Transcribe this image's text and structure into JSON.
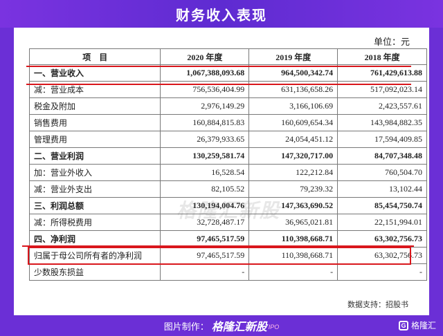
{
  "title": "财务收入表现",
  "unit_label": "单位：元",
  "table": {
    "headers": [
      "项　目",
      "2020 年度",
      "2019 年度",
      "2018 年度"
    ],
    "rows": [
      {
        "label": "一、营业收入",
        "bold": true,
        "v2020": "1,067,388,093.68",
        "v2019": "964,500,342.74",
        "v2018": "761,429,613.88"
      },
      {
        "label": "减：营业成本",
        "bold": false,
        "v2020": "756,536,404.99",
        "v2019": "631,136,658.26",
        "v2018": "517,092,023.14"
      },
      {
        "label": "税金及附加",
        "bold": false,
        "v2020": "2,976,149.29",
        "v2019": "3,166,106.69",
        "v2018": "2,423,557.61"
      },
      {
        "label": "销售费用",
        "bold": false,
        "v2020": "160,884,815.83",
        "v2019": "160,609,654.34",
        "v2018": "143,984,882.35"
      },
      {
        "label": "管理费用",
        "bold": false,
        "v2020": "26,379,933.65",
        "v2019": "24,054,451.12",
        "v2018": "17,594,409.85"
      },
      {
        "label": "二、营业利润",
        "bold": true,
        "v2020": "130,259,581.74",
        "v2019": "147,320,717.00",
        "v2018": "84,707,348.48"
      },
      {
        "label": "加：营业外收入",
        "bold": false,
        "v2020": "16,528.54",
        "v2019": "122,212.84",
        "v2018": "760,504.70"
      },
      {
        "label": "减：营业外支出",
        "bold": false,
        "v2020": "82,105.52",
        "v2019": "79,239.32",
        "v2018": "13,102.44"
      },
      {
        "label": "三、利润总额",
        "bold": true,
        "v2020": "130,194,004.76",
        "v2019": "147,363,690.52",
        "v2018": "85,454,750.74"
      },
      {
        "label": "减：所得税费用",
        "bold": false,
        "v2020": "32,728,487.17",
        "v2019": "36,965,021.81",
        "v2018": "22,151,994.01"
      },
      {
        "label": "四、净利润",
        "bold": true,
        "v2020": "97,465,517.59",
        "v2019": "110,398,668.71",
        "v2018": "63,302,756.73"
      },
      {
        "label": "归属于母公司所有者的净利润",
        "bold": false,
        "v2020": "97,465,517.59",
        "v2019": "110,398,668.71",
        "v2018": "63,302,756.73"
      },
      {
        "label": "少数股东损益",
        "bold": false,
        "v2020": "-",
        "v2019": "-",
        "v2018": "-"
      }
    ]
  },
  "watermark": "格隆汇新股",
  "source": "数据支持：招股书",
  "footer": {
    "credit_label": "图片制作：",
    "brand": "格隆汇新股",
    "brand_suffix": "IPO",
    "logo_text": "格隆汇"
  },
  "colors": {
    "background": "#6b2fd6",
    "highlight": "#d9161c"
  }
}
